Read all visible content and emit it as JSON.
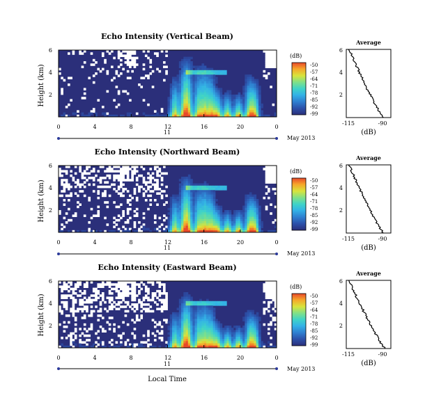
{
  "chart_data": [
    {
      "type": "heatmap",
      "title": "Echo Intensity (Vertical Beam)",
      "xlabel": "",
      "ylabel": "Height (km)",
      "xlim": [
        0,
        24
      ],
      "ylim": [
        0,
        6
      ],
      "xticks": [
        "0",
        "4",
        "8",
        "12",
        "16",
        "20",
        "0"
      ],
      "yticks": [
        "6",
        "4",
        "2"
      ],
      "date_day": "11",
      "date_month": "May 2013",
      "colorbar_unit": "(dB)",
      "colorbar_ticks": [
        "-50",
        "-57",
        "-64",
        "-71",
        "-78",
        "-85",
        "-92",
        "-99"
      ],
      "bursts": [
        [
          12.8,
          3.8
        ],
        [
          13.8,
          5.5
        ],
        [
          14.3,
          5.7
        ],
        [
          15.4,
          4.8
        ],
        [
          16.1,
          5.0
        ],
        [
          16.8,
          4.5
        ],
        [
          17.5,
          2.8
        ],
        [
          18.6,
          2.4
        ],
        [
          19.8,
          2.3
        ],
        [
          21.0,
          4.0
        ],
        [
          21.6,
          3.7
        ]
      ],
      "gap_density": 0.06,
      "average": {
        "title": "Average",
        "xlabel": "(dB)",
        "xticks": [
          "-115",
          "-90"
        ],
        "yticks": [
          "6",
          "4",
          "2"
        ],
        "xlim": [
          -120,
          -88
        ],
        "surface_db": -93,
        "top_db": -118
      }
    },
    {
      "type": "heatmap",
      "title": "Echo Intensity (Northward Beam)",
      "xlabel": "",
      "ylabel": "Height (km)",
      "xlim": [
        0,
        24
      ],
      "ylim": [
        0,
        6
      ],
      "xticks": [
        "0",
        "4",
        "8",
        "12",
        "16",
        "20",
        "0"
      ],
      "yticks": [
        "6",
        "4",
        "2"
      ],
      "date_day": "11",
      "date_month": "May 2013",
      "colorbar_unit": "(dB)",
      "colorbar_ticks": [
        "-50",
        "-57",
        "-64",
        "-71",
        "-78",
        "-85",
        "-92",
        "-99"
      ],
      "bursts": [
        [
          12.8,
          3.6
        ],
        [
          13.8,
          5.2
        ],
        [
          14.3,
          5.4
        ],
        [
          15.4,
          4.6
        ],
        [
          16.1,
          4.8
        ],
        [
          16.8,
          4.3
        ],
        [
          17.5,
          2.6
        ],
        [
          18.6,
          2.2
        ],
        [
          19.8,
          2.2
        ],
        [
          21.0,
          3.8
        ],
        [
          21.6,
          3.5
        ]
      ],
      "gap_density": 0.16,
      "average": {
        "title": "Average",
        "xlabel": "(dB)",
        "xticks": [
          "-115",
          "-90"
        ],
        "yticks": [
          "6",
          "4",
          "2"
        ],
        "xlim": [
          -120,
          -88
        ],
        "surface_db": -93,
        "top_db": -118
      }
    },
    {
      "type": "heatmap",
      "title": "Echo Intensity (Eastward Beam)",
      "xlabel": "Local Time",
      "ylabel": "Height (km)",
      "xlim": [
        0,
        24
      ],
      "ylim": [
        0,
        6
      ],
      "xticks": [
        "0",
        "4",
        "8",
        "12",
        "16",
        "20",
        "0"
      ],
      "yticks": [
        "6",
        "4",
        "2"
      ],
      "date_day": "11",
      "date_month": "May 2013",
      "colorbar_unit": "(dB)",
      "colorbar_ticks": [
        "-50",
        "-57",
        "-64",
        "-71",
        "-78",
        "-85",
        "-92",
        "-99"
      ],
      "bursts": [
        [
          12.8,
          3.5
        ],
        [
          13.8,
          5.0
        ],
        [
          14.3,
          5.2
        ],
        [
          15.4,
          4.4
        ],
        [
          16.1,
          4.6
        ],
        [
          16.8,
          4.1
        ],
        [
          17.5,
          2.5
        ],
        [
          18.6,
          2.1
        ],
        [
          19.8,
          2.1
        ],
        [
          21.0,
          3.6
        ],
        [
          21.6,
          3.3
        ]
      ],
      "gap_density": 0.22,
      "average": {
        "title": "Average",
        "xlabel": "(dB)",
        "xticks": [
          "-115",
          "-90"
        ],
        "yticks": [
          "6",
          "4",
          "2"
        ],
        "xlim": [
          -120,
          -88
        ],
        "surface_db": -92,
        "top_db": -118
      }
    }
  ],
  "colormap": [
    "#2b2f7a",
    "#2c4fa8",
    "#2f7fd0",
    "#33b2e6",
    "#3fd3c8",
    "#7ee08a",
    "#d8e43c",
    "#f6a62a",
    "#e8482a"
  ]
}
